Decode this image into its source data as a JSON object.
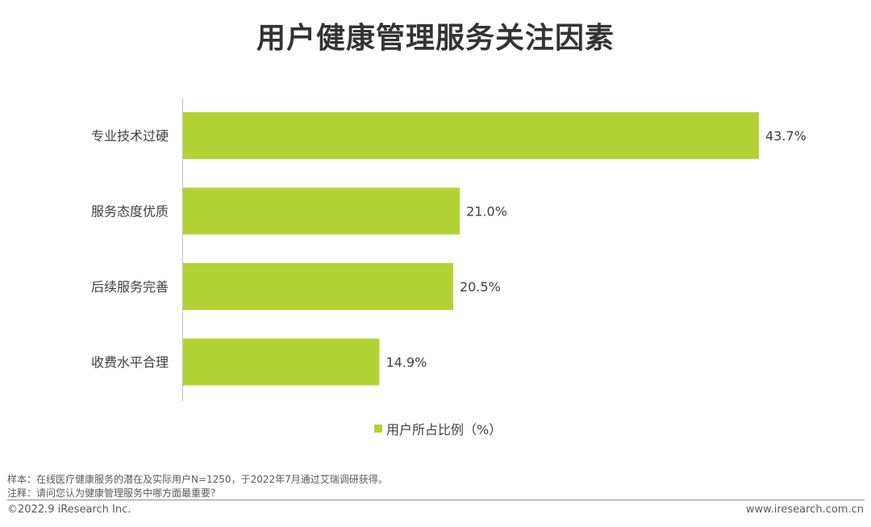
{
  "title": "用户健康管理服务关注因素",
  "chart_data": {
    "type": "bar",
    "orientation": "horizontal",
    "title": "用户健康管理服务关注因素",
    "categories": [
      "专业技术过硬",
      "服务态度优质",
      "后续服务完善",
      "收费水平合理"
    ],
    "series": [
      {
        "name": "用户所占比例（%）",
        "values": [
          43.7,
          21.0,
          20.5,
          14.9
        ],
        "labels": [
          "43.7%",
          "21.0%",
          "20.5%",
          "14.9%"
        ],
        "color": "#b3d234"
      }
    ],
    "xlim": [
      0,
      45
    ],
    "grid": false,
    "legend": "bottom-center"
  },
  "legend": {
    "label": "用户所占比例（%）",
    "color": "#b3d234"
  },
  "notes": {
    "sample": "样本：在线医疗健康服务的潜在及实际用户N=1250，于2022年7月通过艾瑞调研获得。",
    "remark": "注释：请问您认为健康管理服务中哪方面最重要？"
  },
  "footer": {
    "copyright": "©2022.9 iResearch Inc.",
    "url": "www.iresearch.com.cn"
  }
}
